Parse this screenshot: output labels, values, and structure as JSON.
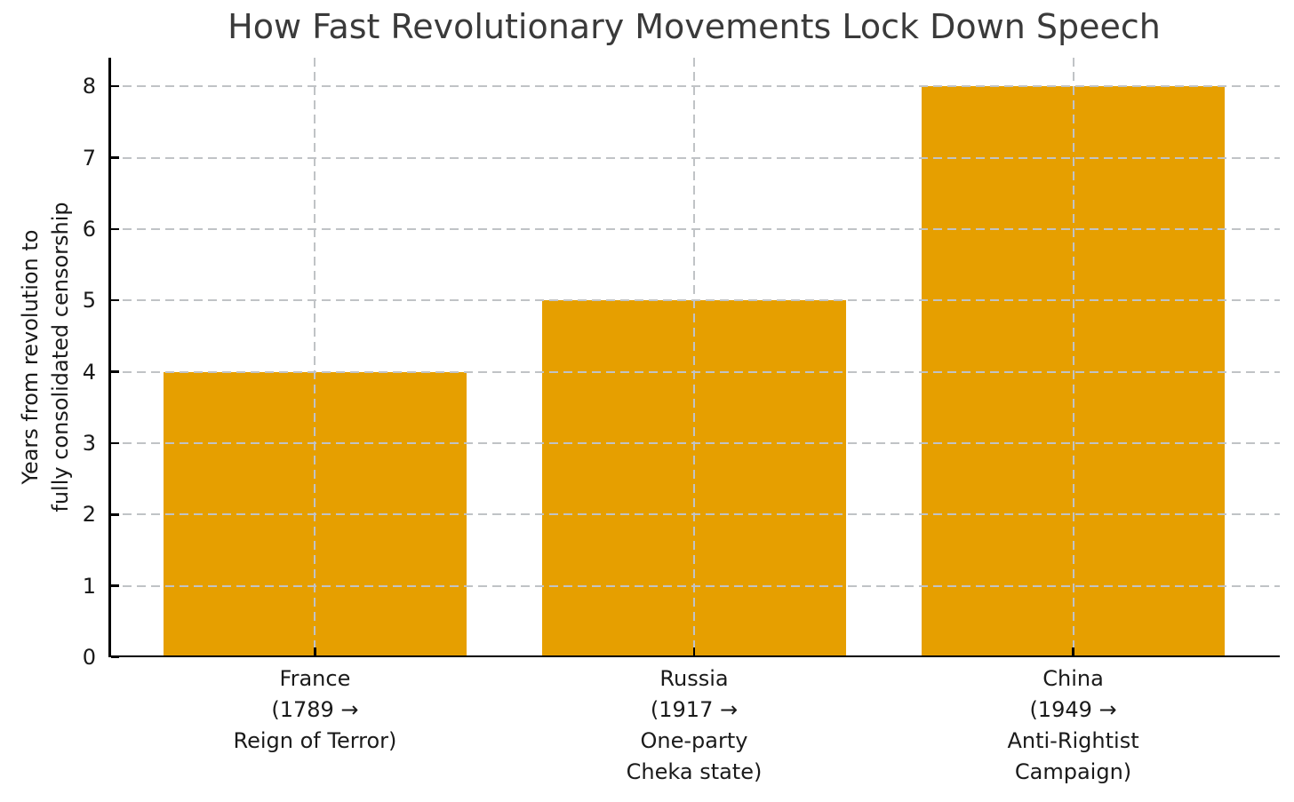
{
  "chart_data": {
    "type": "bar",
    "title": "How Fast Revolutionary Movements Lock Down Speech",
    "xlabel": "",
    "ylabel": "Years from revolution to\nfully consolidated censorship",
    "categories": [
      {
        "id": "france",
        "label": "France\n(1789 →\nReign of Terror)"
      },
      {
        "id": "russia",
        "label": "Russia\n(1917 →\nOne-party\nCheka state)"
      },
      {
        "id": "china",
        "label": "China\n(1949 →\nAnti-Rightist\nCampaign)"
      }
    ],
    "values": [
      4,
      5,
      8
    ],
    "bar_color": "#E69F00",
    "bar_width": 0.8,
    "ylim": [
      0,
      8.4
    ],
    "xlim": [
      -0.545,
      2.545
    ],
    "yticks": [
      0,
      1,
      2,
      3,
      4,
      5,
      6,
      7,
      8
    ],
    "grid": {
      "which": "both",
      "style": "dashed",
      "color": "#c0c3c6",
      "drawn_above_bars": true
    },
    "spines": {
      "left": true,
      "bottom": true,
      "top": false,
      "right": false
    },
    "tick_direction": "in",
    "legend": "none"
  },
  "colors": {
    "title_text": "#3a3a3a",
    "tick_text": "#1a1a1a",
    "spine": "#000000",
    "background": "#ffffff"
  }
}
